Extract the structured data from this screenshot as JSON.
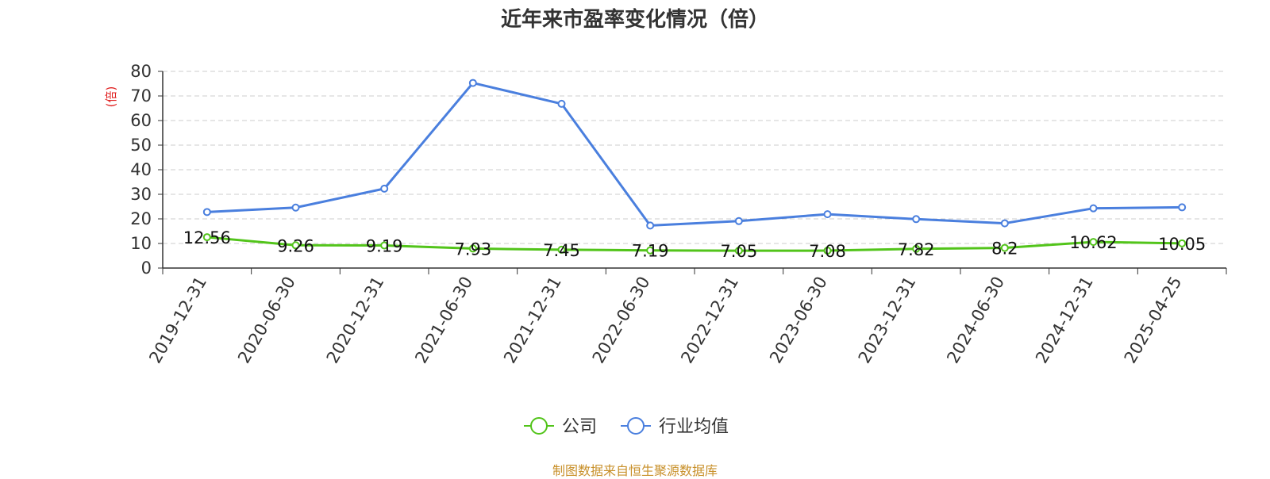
{
  "chart_data": {
    "type": "line",
    "title": "近年来市盈率变化情况（倍）",
    "ylabel": "(倍)",
    "ylim": [
      0,
      80
    ],
    "yticks": [
      0,
      10,
      20,
      30,
      40,
      50,
      60,
      70,
      80
    ],
    "grid": true,
    "legend_position": "bottom",
    "categories": [
      "2019-12-31",
      "2020-06-30",
      "2020-12-31",
      "2021-06-30",
      "2021-12-31",
      "2022-06-30",
      "2022-12-31",
      "2023-06-30",
      "2023-12-31",
      "2024-06-30",
      "2024-12-31",
      "2025-04-25"
    ],
    "series": [
      {
        "name": "公司",
        "color": "#52c41a",
        "values": [
          12.56,
          9.26,
          9.19,
          7.93,
          7.45,
          7.19,
          7.05,
          7.08,
          7.82,
          8.2,
          10.62,
          10.05
        ],
        "labels": [
          "12.56",
          "9.26",
          "9.19",
          "7.93",
          "7.45",
          "7.19",
          "7.05",
          "7.08",
          "7.82",
          "8.2",
          "10.62",
          "10.05"
        ]
      },
      {
        "name": "行业均值",
        "color": "#4a7fde",
        "values": [
          22.8,
          24.6,
          32.3,
          75.3,
          66.8,
          17.3,
          19.1,
          21.9,
          19.9,
          18.2,
          24.3,
          24.7
        ]
      }
    ],
    "source_note": "制图数据来自恒生聚源数据库"
  },
  "colors": {
    "ylabel": "#e02020",
    "source": "#c8902a",
    "axis": "#333333",
    "grid": "#cccccc"
  }
}
